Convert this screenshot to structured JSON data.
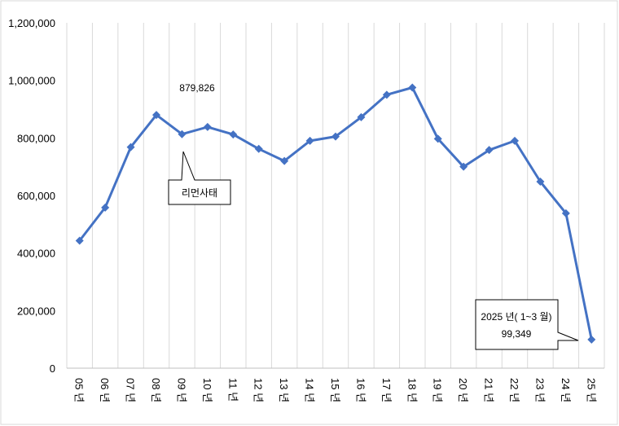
{
  "chart_data": {
    "type": "line",
    "categories": [
      "05 년",
      "06 년",
      "07 년",
      "08 년",
      "09 년",
      "10 년",
      "11 년",
      "12 년",
      "13 년",
      "14 년",
      "15 년",
      "16 년",
      "17 년",
      "18 년",
      "19 년",
      "20 년",
      "21 년",
      "22 년",
      "23 년",
      "24 년",
      "25 년"
    ],
    "series": [
      {
        "values": [
          443000,
          558000,
          768000,
          879826,
          813000,
          838000,
          812000,
          762000,
          720000,
          790000,
          805000,
          872000,
          950000,
          975000,
          797000,
          700000,
          758000,
          790000,
          648000,
          538000,
          99349
        ]
      }
    ],
    "ylim": [
      0,
      1200000
    ],
    "yticks": [
      "0",
      "200,000",
      "400,000",
      "600,000",
      "800,000",
      "1,000,000",
      "1,200,000"
    ],
    "grid": "vertical",
    "line_color": "#4472C4",
    "annotations": {
      "peak_value": "879,826",
      "event_label": "리먼사태",
      "latest_label_line1": "2025 년( 1~3 월)",
      "latest_label_line2": "99,349"
    }
  }
}
